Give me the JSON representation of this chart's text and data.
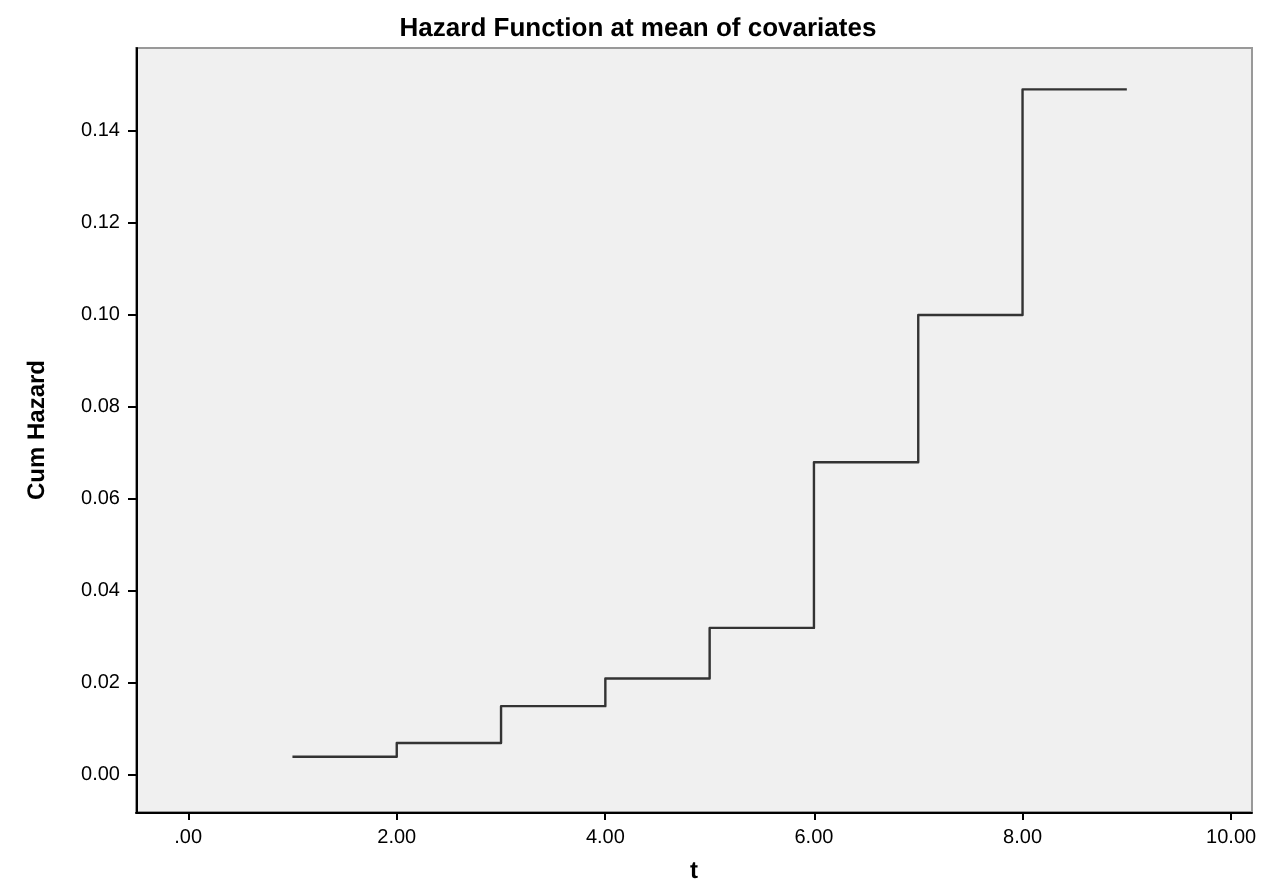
{
  "chart_data": {
    "type": "step",
    "title": "Hazard Function at mean of covariates",
    "xlabel": "t",
    "ylabel": "Cum Hazard",
    "x": [
      1,
      2,
      3,
      4,
      5,
      6,
      7,
      8,
      9
    ],
    "series": [
      {
        "color": "#333333",
        "values": [
          0.004,
          0.007,
          0.015,
          0.021,
          0.032,
          0.068,
          0.1,
          0.149,
          0.149
        ]
      }
    ],
    "xlim": [
      -0.5,
      10.2
    ],
    "xticks": [
      {
        "value": 0,
        "label": ".00"
      },
      {
        "value": 2,
        "label": "2.00"
      },
      {
        "value": 4,
        "label": "4.00"
      },
      {
        "value": 6,
        "label": "6.00"
      },
      {
        "value": 8,
        "label": "8.00"
      },
      {
        "value": 10,
        "label": "10.00"
      }
    ],
    "ylim": [
      -0.008,
      0.158
    ],
    "yticks": [
      {
        "value": 0,
        "label": "0.00"
      },
      {
        "value": 0.02,
        "label": "0.02"
      },
      {
        "value": 0.04,
        "label": "0.04"
      },
      {
        "value": 0.06,
        "label": "0.06"
      },
      {
        "value": 0.08,
        "label": "0.08"
      },
      {
        "value": 0.1,
        "label": "0.10"
      },
      {
        "value": 0.12,
        "label": "0.12"
      },
      {
        "value": 0.14,
        "label": "0.14"
      }
    ],
    "grid": false,
    "marker": "none",
    "line_style": "solid"
  }
}
